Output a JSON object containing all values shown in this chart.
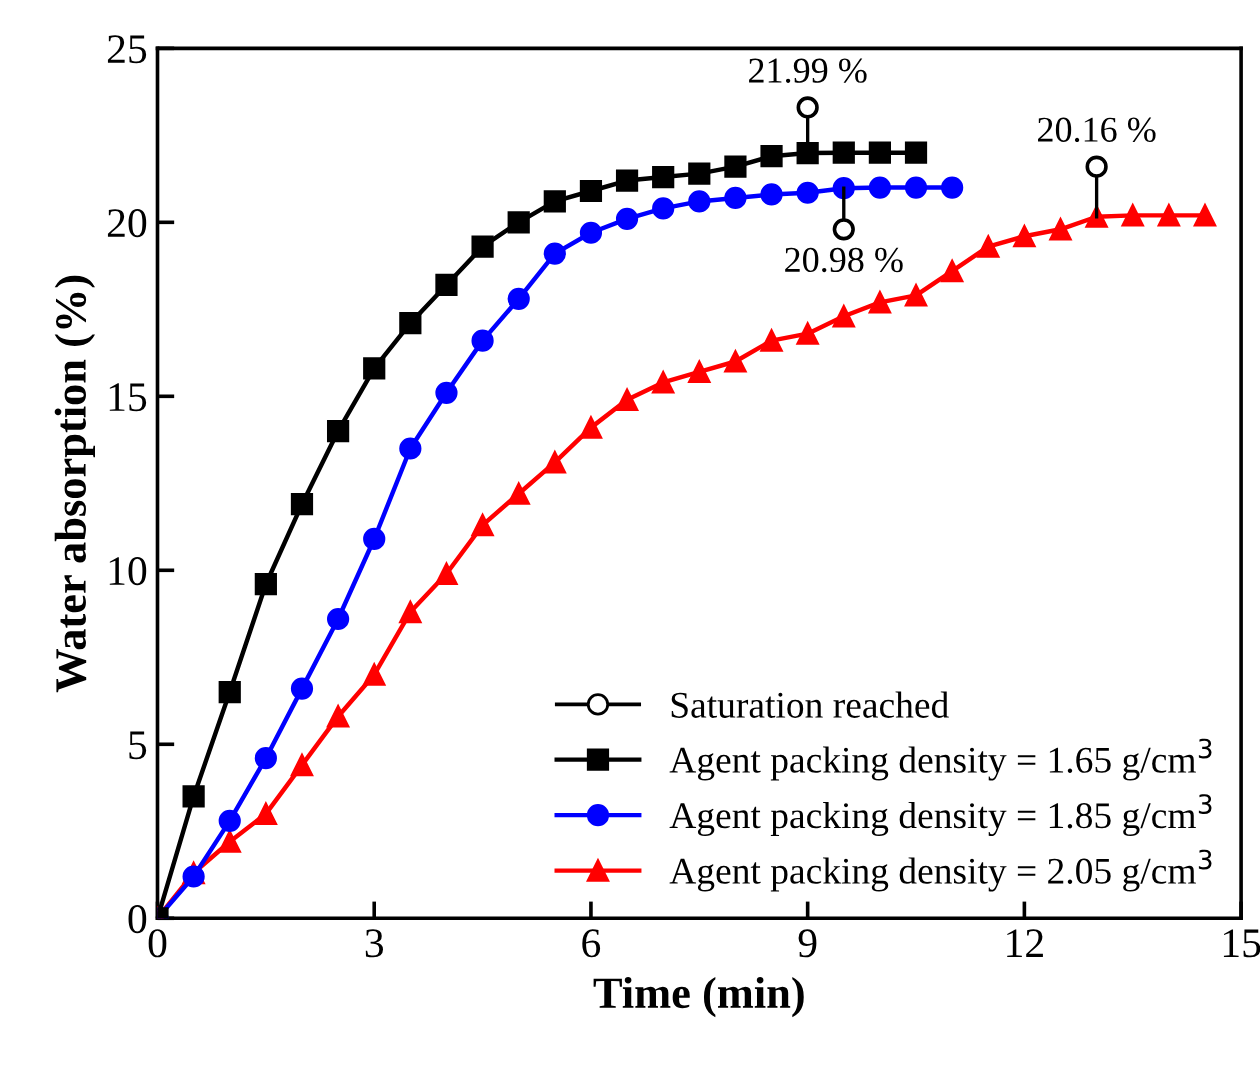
{
  "chart_data": {
    "type": "line",
    "xlabel": "Time (min)",
    "ylabel": "Water absorption (%)",
    "xlim": [
      0,
      15
    ],
    "ylim": [
      0,
      25
    ],
    "xticks": [
      0,
      3,
      6,
      9,
      12,
      15
    ],
    "yticks": [
      0,
      5,
      10,
      15,
      20,
      25
    ],
    "grid": false,
    "legend": "bottom right",
    "line_style": "solid",
    "series": [
      {
        "name": "Saturation reached",
        "type": "scatter",
        "marker": "circle",
        "color": "#000000",
        "x": [
          9,
          9.5,
          13
        ],
        "values": [
          23.3,
          19.8,
          21.6
        ]
      },
      {
        "name": "Agent packing density = 1.65 g/cm$^{3}$",
        "marker": "square",
        "color": "#000000",
        "x": [
          0,
          0.5,
          1,
          1.5,
          2,
          2.5,
          3,
          3.5,
          4,
          4.5,
          5,
          5.5,
          6,
          6.5,
          7,
          7.5,
          8,
          8.5,
          9,
          9.5,
          10,
          10.5
        ],
        "values": [
          0,
          3.5,
          6.5,
          9.6,
          11.9,
          14.0,
          15.8,
          17.1,
          18.2,
          19.3,
          20.0,
          20.6,
          20.9,
          21.2,
          21.3,
          21.4,
          21.6,
          21.9,
          21.99,
          22.0,
          22.0,
          22.0
        ]
      },
      {
        "name": "Agent packing density = 1.85 g/cm$^{3}$",
        "marker": "circle",
        "color": "#0000ff",
        "x": [
          0,
          0.5,
          1,
          1.5,
          2,
          2.5,
          3,
          3.5,
          4,
          4.5,
          5,
          5.5,
          6,
          6.5,
          7,
          7.5,
          8,
          8.5,
          9,
          9.5,
          10,
          10.5,
          11
        ],
        "values": [
          0,
          1.2,
          2.8,
          4.6,
          6.6,
          8.6,
          10.9,
          13.5,
          15.1,
          16.6,
          17.8,
          19.1,
          19.7,
          20.1,
          20.4,
          20.6,
          20.7,
          20.8,
          20.85,
          20.98,
          21.0,
          21.0,
          21.0
        ]
      },
      {
        "name": "Agent packing density = 2.05 g/cm$^{3}$",
        "marker": "triangle",
        "color": "#ff0000",
        "x": [
          0,
          0.5,
          1,
          1.5,
          2,
          2.5,
          3,
          3.5,
          4,
          4.5,
          5,
          5.5,
          6,
          6.5,
          7,
          7.5,
          8,
          8.5,
          9,
          9.5,
          10,
          10.5,
          11,
          11.5,
          12,
          12.5,
          13,
          13.5,
          14,
          14.5
        ],
        "values": [
          0,
          1.3,
          2.2,
          3.0,
          4.4,
          5.8,
          7.0,
          8.8,
          9.9,
          11.3,
          12.2,
          13.1,
          14.1,
          14.9,
          15.4,
          15.7,
          16.0,
          16.6,
          16.8,
          17.3,
          17.7,
          17.9,
          18.6,
          19.3,
          19.6,
          19.8,
          20.16,
          20.2,
          20.2,
          20.2
        ]
      }
    ],
    "annotations": [
      {
        "text": "21.99 %",
        "x": 9,
        "y": 21.99
      },
      {
        "text": "20.98 %",
        "x": 9.5,
        "y": 20.98
      },
      {
        "text": "20.16 %",
        "x": 13,
        "y": 20.16
      }
    ]
  }
}
